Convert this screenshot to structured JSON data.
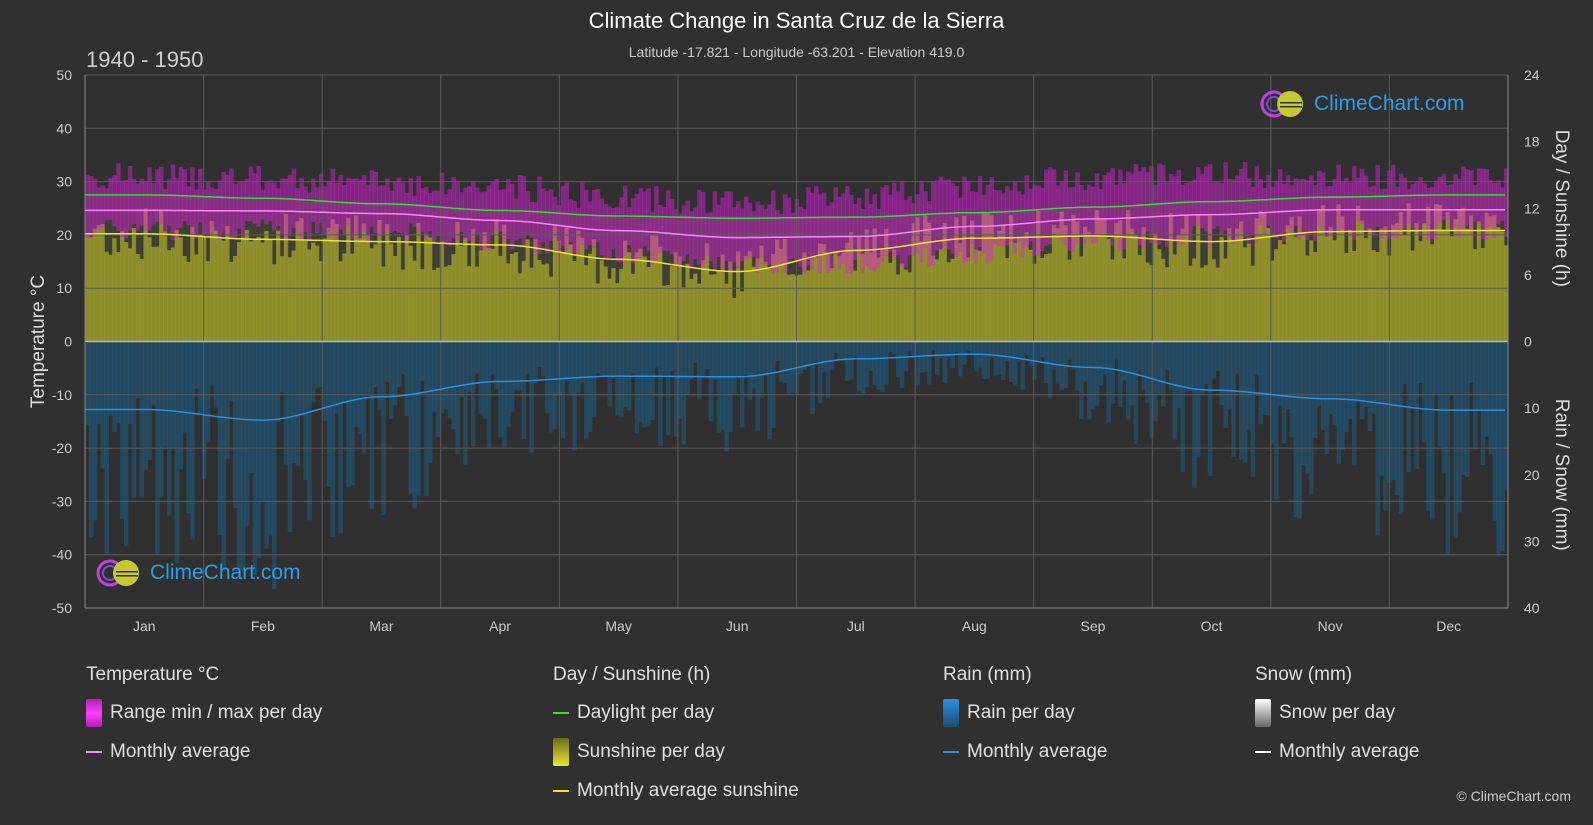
{
  "header": {
    "title": "Climate Change in Santa Cruz de la Sierra",
    "subtitle": "Latitude -17.821 - Longitude -63.201 - Elevation 419.0",
    "period": "1940 - 1950"
  },
  "logo": {
    "text": "ClimeChart.com"
  },
  "copyright": "© ClimeChart.com",
  "colors": {
    "background": "#303030",
    "temp_range": "#e020e0",
    "temp_avg": "#ff80ff",
    "daylight": "#33dd33",
    "sunshine_fill": "#a8a82a",
    "sunshine_avg": "#e8e830",
    "rain_fill": "#1a5f8a",
    "rain_avg": "#2b8fe0",
    "snow": "#ffffff",
    "logo_text": "#2b9fe6"
  },
  "legend": [
    {
      "title": "Temperature °C",
      "items": [
        {
          "label": "Range min / max per day",
          "swatch": "box",
          "color": "#e020e0"
        },
        {
          "label": "Monthly average",
          "swatch": "line",
          "color": "#ff80ff"
        }
      ]
    },
    {
      "title": "Day / Sunshine (h)",
      "items": [
        {
          "label": "Daylight per day",
          "swatch": "line",
          "color": "#33dd33"
        },
        {
          "label": "Sunshine per day",
          "swatch": "box",
          "color": "#d8d840"
        },
        {
          "label": "Monthly average sunshine",
          "swatch": "line",
          "color": "#e8e830"
        }
      ]
    },
    {
      "title": "Rain (mm)",
      "items": [
        {
          "label": "Rain per day",
          "swatch": "box",
          "color": "#2b8fe0"
        },
        {
          "label": "Monthly average",
          "swatch": "line",
          "color": "#2b8fe0"
        }
      ]
    },
    {
      "title": "Snow (mm)",
      "items": [
        {
          "label": "Snow per day",
          "swatch": "box",
          "color": "#dddddd"
        },
        {
          "label": "Monthly average",
          "swatch": "line",
          "color": "#ffffff"
        }
      ]
    }
  ],
  "chart_data": {
    "type": "line",
    "months": [
      "Jan",
      "Feb",
      "Mar",
      "Apr",
      "May",
      "Jun",
      "Jul",
      "Aug",
      "Sep",
      "Oct",
      "Nov",
      "Dec"
    ],
    "left_axis": {
      "label": "Temperature °C",
      "min": -50,
      "max": 50,
      "ticks": [
        50,
        40,
        30,
        20,
        10,
        0,
        -10,
        -20,
        -30,
        -40,
        -50
      ]
    },
    "right_axis_top": {
      "label": "Day / Sunshine (h)",
      "min": 0,
      "max": 24,
      "ticks": [
        24,
        18,
        12,
        6,
        0
      ]
    },
    "right_axis_bottom": {
      "label": "Rain / Snow (mm)",
      "min": 0,
      "max": 40,
      "ticks": [
        0,
        10,
        20,
        30,
        40
      ]
    },
    "grid": true,
    "series": [
      {
        "name": "Daylight per day",
        "axis": "hours",
        "values": [
          13.2,
          12.9,
          12.4,
          11.8,
          11.3,
          11.1,
          11.2,
          11.6,
          12.1,
          12.6,
          13.0,
          13.2
        ]
      },
      {
        "name": "Monthly average sunshine",
        "axis": "hours",
        "values": [
          9.7,
          9.2,
          9.0,
          8.7,
          7.4,
          6.3,
          8.2,
          9.3,
          9.5,
          9.0,
          9.9,
          10.0
        ]
      },
      {
        "name": "Monthly average",
        "axis": "temperature",
        "values": [
          24.6,
          24.5,
          24.0,
          22.7,
          20.8,
          19.5,
          19.7,
          21.6,
          23.0,
          23.8,
          24.7,
          24.7
        ]
      },
      {
        "name": "Range max",
        "axis": "temperature",
        "values": [
          31,
          30.5,
          30,
          29,
          27,
          26,
          27,
          29.5,
          31,
          31.5,
          31,
          31
        ]
      },
      {
        "name": "Range min",
        "axis": "temperature",
        "values": [
          21,
          21,
          20.5,
          19,
          16.5,
          14.5,
          14.5,
          16.5,
          18.5,
          20,
          20.5,
          21
        ]
      },
      {
        "name": "Monthly average rain",
        "axis": "rain",
        "values": [
          10.2,
          11.8,
          8.3,
          6.0,
          5.2,
          5.3,
          2.6,
          1.9,
          3.9,
          7.3,
          8.6,
          10.3
        ]
      }
    ]
  }
}
